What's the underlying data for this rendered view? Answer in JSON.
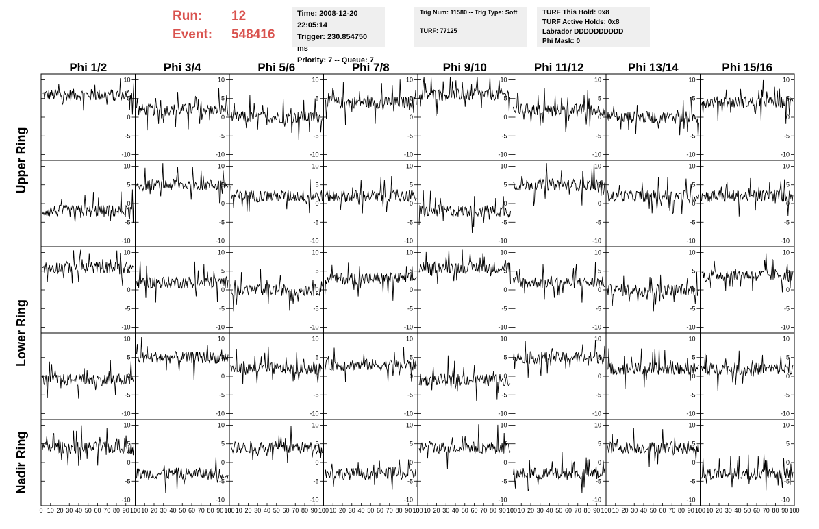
{
  "header": {
    "run_label": "Run:",
    "run_value": "12",
    "event_label": "Event:",
    "event_value": "548416",
    "time": "Time: 2008-12-20 22:05:14",
    "trigger": "Trigger: 230.854750 ms",
    "priority": "Priority: 7 -- Queue: 7",
    "trig_num": "Trig Num: 11580 -- Trig Type: Soft",
    "turf_num": "TURF: 77125",
    "turf_this_hold": "TURF This Hold: 0x8",
    "turf_active_holds": "TURF Active Holds: 0x8",
    "labrador": "Labrador DDDDDDDDDD",
    "phi_mask": "Phi Mask: 0"
  },
  "columns": [
    "Phi 1/2",
    "Phi 3/4",
    "Phi 5/6",
    "Phi 7/8",
    "Phi 9/10",
    "Phi 11/12",
    "Phi 13/14",
    "Phi 15/16"
  ],
  "rings": [
    "Upper Ring",
    "Lower Ring",
    "Nadir Ring"
  ],
  "colors": {
    "title_red": "#d9534f",
    "info_bg": "#efefef",
    "trace": "#000000"
  },
  "chart_data": {
    "type": "line",
    "description_rows": 5,
    "description_cols": 8,
    "xlim": [
      0,
      100
    ],
    "ylim": [
      -11,
      11
    ],
    "x_ticks": [
      "0",
      "10",
      "20",
      "30",
      "40",
      "50",
      "60",
      "70",
      "80",
      "90",
      "100"
    ],
    "y_ticks": [
      "10",
      "5",
      "0",
      "-5",
      "-10"
    ],
    "baselines": [
      [
        6,
        2,
        0,
        4,
        6,
        2,
        0,
        4
      ],
      [
        -2,
        5,
        2,
        2,
        -2,
        5,
        2,
        2
      ],
      [
        6,
        2,
        0,
        3,
        6,
        2,
        0,
        4
      ],
      [
        -1,
        5,
        2,
        3,
        -1,
        5,
        2,
        2
      ],
      [
        4,
        -3,
        4,
        -3,
        4,
        -3,
        4,
        -3
      ]
    ]
  }
}
